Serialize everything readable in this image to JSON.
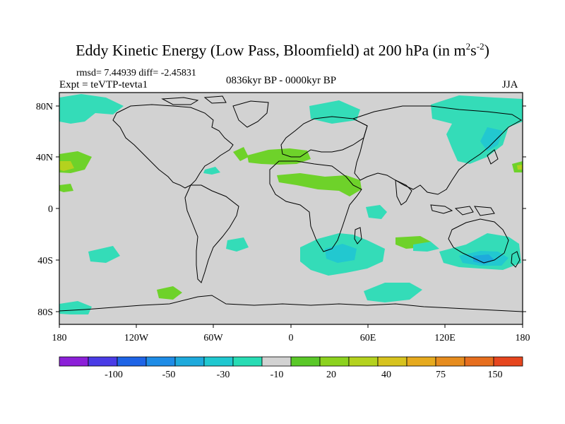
{
  "title": {
    "main": "Eddy Kinetic Energy (Low Pass, Bloomfield) at 200 hPa (in m",
    "sup1": "2",
    "mid": "s",
    "sup2": "-2",
    "end": ")"
  },
  "stats": "rmsd= 7.44939 diff= -2.45831",
  "expt": "Expt = teVTP-tevta1",
  "period": "0836kyr BP - 0000kyr BP",
  "season": "JJA",
  "map": {
    "ocean_color": "#d2d2d2",
    "x_ticks": [
      "180",
      "120W",
      "60W",
      "0",
      "60E",
      "120E",
      "180"
    ],
    "y_ticks": [
      "80N",
      "40N",
      "0",
      "40S",
      "80S"
    ]
  },
  "colorbar": {
    "colors": [
      "#8c20d8",
      "#4a3ce6",
      "#1e64e6",
      "#1e8ce6",
      "#1eaadc",
      "#20c8d0",
      "#28dcb4",
      "#d2d2d2",
      "#5ac828",
      "#8cd21e",
      "#b4d21e",
      "#d7c31e",
      "#e6aa1e",
      "#e68c1e",
      "#e66e1e",
      "#e6461e"
    ],
    "labels": [
      "-100",
      "-50",
      "-30",
      "-10",
      "20",
      "40",
      "75",
      "150"
    ]
  },
  "colors": {
    "cyan_light": "#34dcb8",
    "cyan_mid": "#22c8d0",
    "cyan_dark": "#1eaadc",
    "green": "#6ed22a",
    "yellow_green": "#b4d21e"
  }
}
